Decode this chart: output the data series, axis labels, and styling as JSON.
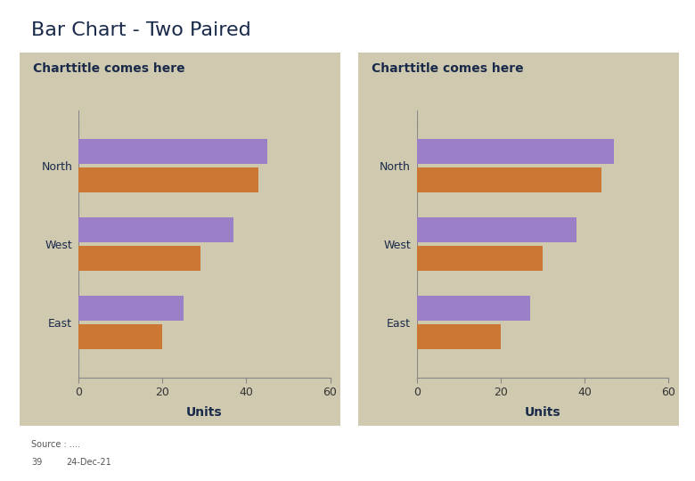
{
  "main_title": "Bar Chart - Two Paired",
  "main_title_color": "#1a2a4a",
  "main_title_fontsize": 16,
  "chart_title": "Charttitle comes here",
  "chart_title_color": "#1a2a4a",
  "chart_title_fontsize": 10,
  "panel_bg": "#cfc9b0",
  "outer_bg": "#ffffff",
  "categories": [
    "North",
    "West",
    "East"
  ],
  "chart1": {
    "purple_values": [
      45,
      37,
      25
    ],
    "orange_values": [
      43,
      29,
      20
    ]
  },
  "chart2": {
    "purple_values": [
      47,
      38,
      27
    ],
    "orange_values": [
      44,
      30,
      20
    ]
  },
  "purple_color": "#9b80c8",
  "orange_color": "#cc7733",
  "xlabel": "Units",
  "xlabel_color": "#1a2a4a",
  "xlim": [
    0,
    60
  ],
  "xticks": [
    0,
    20,
    40,
    60
  ],
  "ylabel_color": "#1a2a4a",
  "tick_color": "#333333",
  "axis_line_color": "#888888",
  "source_text": "Source : ....",
  "footer_num": "39",
  "footer_date": "24-Dec-21",
  "footer_color": "#555555"
}
